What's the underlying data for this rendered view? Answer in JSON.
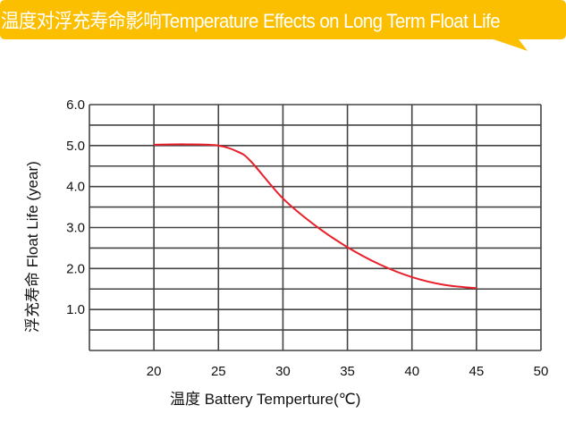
{
  "title": "温度对浮充寿命影响Temperature Effects on Long Term Float Life",
  "colors": {
    "banner": "#FBBF00",
    "curve": "#E8202A",
    "grid": "#444444"
  },
  "chart_data": {
    "type": "line",
    "title": "温度对浮充寿命影响Temperature Effects on Long Term Float Life",
    "xlabel": "温度  Battery  Temperture(℃)",
    "ylabel": "浮充寿命  Float Life (year)",
    "xlim": [
      15,
      50
    ],
    "ylim": [
      0,
      6.0
    ],
    "x_ticks": [
      "20",
      "25",
      "30",
      "35",
      "40",
      "45",
      "50"
    ],
    "y_ticks": [
      "1.0",
      "2.0",
      "3.0",
      "4.0",
      "5.0",
      "6.0"
    ],
    "grid": true,
    "series": [
      {
        "x": [
          20,
          22.5,
          25,
          26.5,
          27.5,
          30,
          32.5,
          35,
          37.5,
          40,
          42.5,
          45
        ],
        "y": [
          5.02,
          5.03,
          5.0,
          4.85,
          4.62,
          3.71,
          3.05,
          2.52,
          2.1,
          1.79,
          1.6,
          1.52
        ]
      }
    ]
  }
}
